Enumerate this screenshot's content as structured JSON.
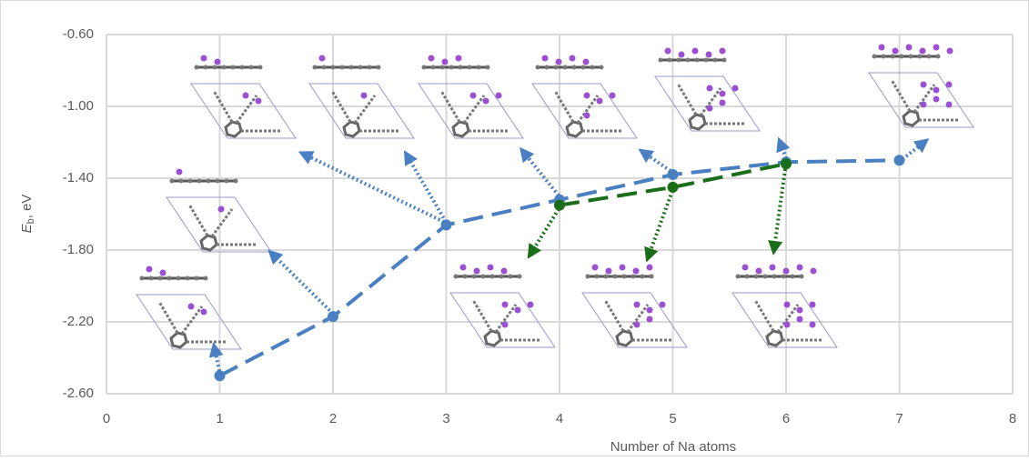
{
  "chart_data": {
    "type": "line",
    "x_label": "Number of Na atoms",
    "y_label": {
      "symbol": "E",
      "subscript": "b",
      "unit": ", eV"
    },
    "xlim": [
      0,
      8
    ],
    "xticks": [
      0,
      1,
      2,
      3,
      4,
      5,
      6,
      7,
      8
    ],
    "ylim": [
      -2.6,
      -0.6
    ],
    "yticks": [
      {
        "value": -2.6,
        "label": "-2.60"
      },
      {
        "value": -2.2,
        "label": "-2.20"
      },
      {
        "value": -1.8,
        "label": "-1.80"
      },
      {
        "value": -1.4,
        "label": "-1.40"
      },
      {
        "value": -1.0,
        "label": "-1.00"
      },
      {
        "value": -0.6,
        "label": "-0.60"
      }
    ],
    "grid": true,
    "series": [
      {
        "color": "#4a7fc1",
        "x": [
          1,
          2,
          3,
          4,
          5,
          6,
          7
        ],
        "values": [
          -2.5,
          -2.17,
          -1.66,
          -1.52,
          -1.38,
          -1.31,
          -1.3
        ]
      },
      {
        "color": "#1a6e1a",
        "x": [
          4,
          5,
          6
        ],
        "values": [
          -1.55,
          -1.45,
          -1.32
        ]
      }
    ]
  }
}
